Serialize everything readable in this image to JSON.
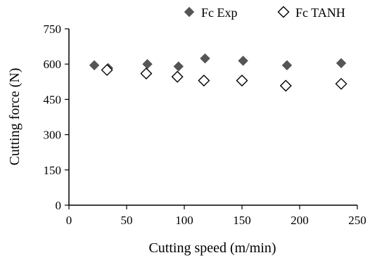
{
  "chart_data": {
    "type": "scatter",
    "title": "",
    "xlabel": "Cutting speed (m/min)",
    "ylabel": "Cutting force (N)",
    "xlim": [
      0,
      250
    ],
    "ylim": [
      0,
      750
    ],
    "xticks": [
      0,
      50,
      100,
      150,
      200,
      250
    ],
    "yticks": [
      0,
      150,
      300,
      450,
      600,
      750
    ],
    "grid": false,
    "legend_position": "top-right",
    "series": [
      {
        "name": "Fc Exp",
        "marker": "filled-diamond",
        "color": "#555555",
        "points": [
          {
            "x": 22,
            "y": 595
          },
          {
            "x": 34,
            "y": 583
          },
          {
            "x": 68,
            "y": 600
          },
          {
            "x": 95,
            "y": 590
          },
          {
            "x": 118,
            "y": 624
          },
          {
            "x": 151,
            "y": 614
          },
          {
            "x": 189,
            "y": 595
          },
          {
            "x": 236,
            "y": 604
          }
        ]
      },
      {
        "name": "Fc TANH",
        "marker": "hollow-diamond",
        "color": "#000000",
        "points": [
          {
            "x": 33,
            "y": 575
          },
          {
            "x": 67,
            "y": 560
          },
          {
            "x": 94,
            "y": 546
          },
          {
            "x": 117,
            "y": 530
          },
          {
            "x": 150,
            "y": 530
          },
          {
            "x": 188,
            "y": 508
          },
          {
            "x": 236,
            "y": 516
          }
        ]
      }
    ]
  }
}
